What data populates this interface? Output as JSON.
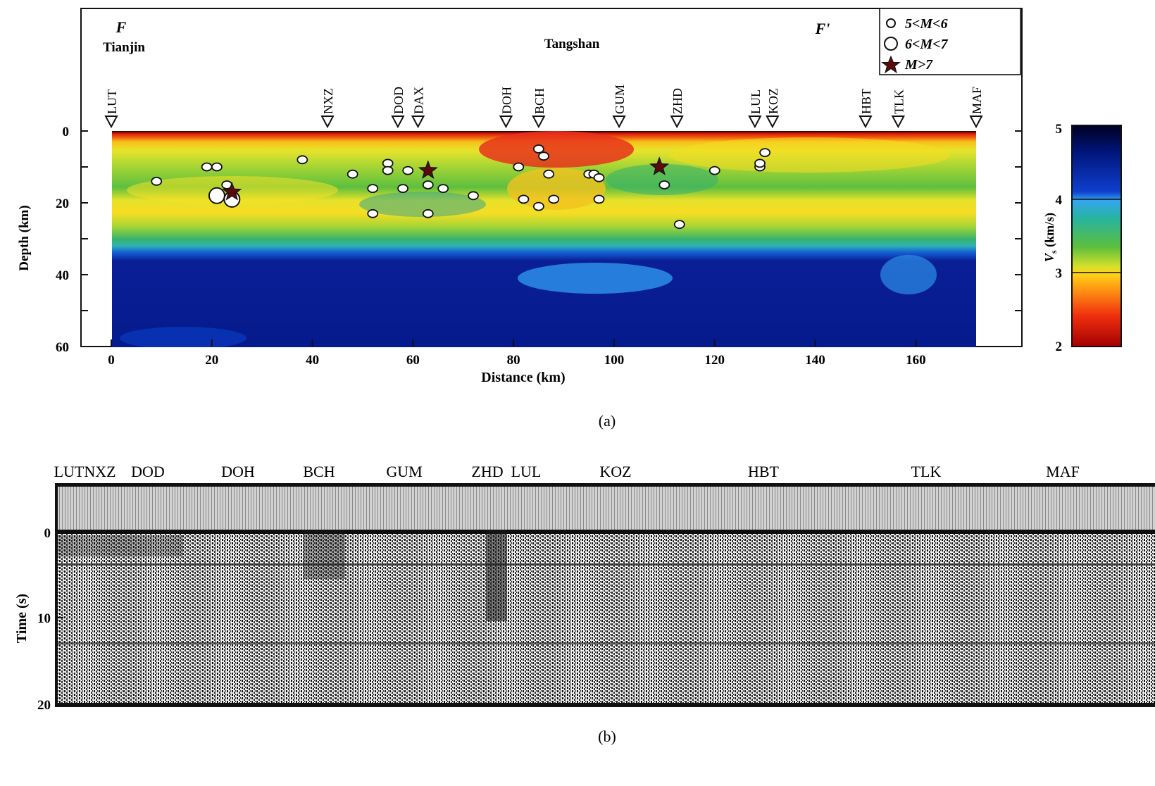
{
  "panel_a": {
    "start_label": "F",
    "start_city": "Tianjin",
    "mid_city": "Tangshan",
    "end_label": "F'",
    "xlabel": "Distance (km)",
    "ylabel": "Depth (km)",
    "caption": "(a)",
    "colorbar": {
      "label": "V_s (km/s)",
      "label_main": "V",
      "label_sub": "s",
      "label_unit": "(km/s)",
      "ticks": [
        "5",
        "4",
        "3",
        "2"
      ],
      "colors": [
        "#000033",
        "#00199c",
        "#1f6fe0",
        "#2bb8b4",
        "#5cbf3c",
        "#c7d82c",
        "#ffe21f",
        "#ff9a14",
        "#f23b10",
        "#b10000"
      ]
    },
    "legend": {
      "small": "5<M<6",
      "large": "6<M<7",
      "star": "M>7"
    },
    "stations": [
      {
        "name": "LUT",
        "x": 0
      },
      {
        "name": "NXZ",
        "x": 43
      },
      {
        "name": "DOD",
        "x": 57
      },
      {
        "name": "DAX",
        "x": 61
      },
      {
        "name": "DOH",
        "x": 78.5
      },
      {
        "name": "BCH",
        "x": 85
      },
      {
        "name": "GUM",
        "x": 101
      },
      {
        "name": "ZHD",
        "x": 112.5
      },
      {
        "name": "LUL",
        "x": 128
      },
      {
        "name": "KOZ",
        "x": 131.5
      },
      {
        "name": "HBT",
        "x": 150
      },
      {
        "name": "TLK",
        "x": 156.5
      },
      {
        "name": "MAF",
        "x": 172
      }
    ]
  },
  "panel_b": {
    "ylabel": "Time (s)",
    "caption": "(b)",
    "station_labels": [
      "LUT",
      "NXZ",
      "DOD",
      "DOH",
      "BCH",
      "GUM",
      "ZHD",
      "LUL",
      "KOZ",
      "HBT",
      "TLK",
      "MAF"
    ],
    "yticks": [
      "0",
      "10",
      "20"
    ]
  },
  "chart_data": [
    {
      "type": "heatmap",
      "title": "",
      "xlabel": "Distance (km)",
      "ylabel": "Depth (km)",
      "xlim": [
        0,
        172
      ],
      "ylim": [
        60,
        0
      ],
      "xticks": [
        0,
        20,
        40,
        60,
        80,
        100,
        120,
        140,
        160
      ],
      "yticks": [
        0,
        20,
        40,
        60
      ],
      "colorbar_range": [
        2,
        5
      ],
      "colorbar_label": "V_s (km/s)",
      "velocity_layers_vs_depth": [
        {
          "depth_km": 0,
          "vs_km_s": 2.2
        },
        {
          "depth_km": 3,
          "vs_km_s": 3.0
        },
        {
          "depth_km": 8,
          "vs_km_s": 3.2
        },
        {
          "depth_km": 15,
          "vs_km_s": 3.5
        },
        {
          "depth_km": 25,
          "vs_km_s": 3.7
        },
        {
          "depth_km": 32,
          "vs_km_s": 4.3
        },
        {
          "depth_km": 45,
          "vs_km_s": 4.6
        },
        {
          "depth_km": 60,
          "vs_km_s": 4.6
        }
      ],
      "series": [
        {
          "name": "5<M<6",
          "points": [
            [
              9,
              14
            ],
            [
              19,
              10
            ],
            [
              21,
              10
            ],
            [
              23,
              15
            ],
            [
              38,
              8
            ],
            [
              48,
              12
            ],
            [
              52,
              16
            ],
            [
              52,
              23
            ],
            [
              55,
              9
            ],
            [
              55,
              11
            ],
            [
              58,
              16
            ],
            [
              59,
              11
            ],
            [
              63,
              15
            ],
            [
              63,
              23
            ],
            [
              66,
              16
            ],
            [
              72,
              18
            ],
            [
              81,
              10
            ],
            [
              82,
              19
            ],
            [
              85,
              5
            ],
            [
              85,
              21
            ],
            [
              86,
              7
            ],
            [
              87,
              12
            ],
            [
              88,
              19
            ],
            [
              95,
              12
            ],
            [
              96,
              12
            ],
            [
              97,
              13
            ],
            [
              97,
              19
            ],
            [
              110,
              15
            ],
            [
              113,
              26
            ],
            [
              120,
              11
            ],
            [
              129,
              10
            ],
            [
              129,
              9
            ],
            [
              130,
              6
            ]
          ]
        },
        {
          "name": "6<M<7",
          "points": [
            [
              21,
              18
            ],
            [
              24,
              19
            ]
          ]
        },
        {
          "name": "M>7",
          "points": [
            [
              24,
              17
            ],
            [
              63,
              11
            ],
            [
              109,
              10
            ]
          ]
        }
      ]
    },
    {
      "type": "heatmap",
      "title": "",
      "xlabel": "",
      "ylabel": "Time (s)",
      "ylim": [
        20,
        0
      ],
      "yticks": [
        0,
        10,
        20
      ],
      "categories": [
        "LUT",
        "NXZ",
        "DOD",
        "DOH",
        "BCH",
        "GUM",
        "ZHD",
        "LUL",
        "KOZ",
        "HBT",
        "TLK",
        "MAF"
      ]
    }
  ]
}
